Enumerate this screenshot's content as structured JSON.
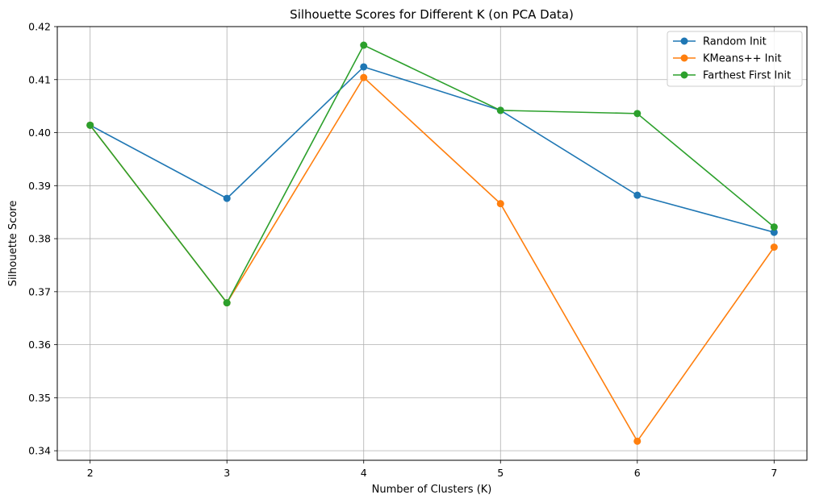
{
  "chart_data": {
    "type": "line",
    "title": "Silhouette Scores for Different K (on PCA Data)",
    "xlabel": "Number of Clusters (K)",
    "ylabel": "Silhouette Score",
    "x": [
      2,
      3,
      4,
      5,
      6,
      7
    ],
    "xlim": [
      1.76,
      7.24
    ],
    "ylim": [
      0.3382,
      0.42
    ],
    "xticks": [
      "2",
      "3",
      "4",
      "5",
      "6",
      "7"
    ],
    "yticks": [
      "0.34",
      "0.35",
      "0.36",
      "0.37",
      "0.38",
      "0.39",
      "0.40",
      "0.41",
      "0.42"
    ],
    "grid": true,
    "legend_position": "top-right",
    "series": [
      {
        "name": "Random Init",
        "color": "#1f77b4",
        "values": [
          0.4014,
          0.3876,
          0.4124,
          0.4042,
          0.3882,
          0.3812
        ]
      },
      {
        "name": "KMeans++ Init",
        "color": "#ff7f0e",
        "values": [
          0.4014,
          0.3679,
          0.4104,
          0.3866,
          0.3418,
          0.3784
        ]
      },
      {
        "name": "Farthest First Init",
        "color": "#2ca02c",
        "values": [
          0.4014,
          0.3679,
          0.4165,
          0.4042,
          0.4036,
          0.3822
        ]
      }
    ]
  }
}
